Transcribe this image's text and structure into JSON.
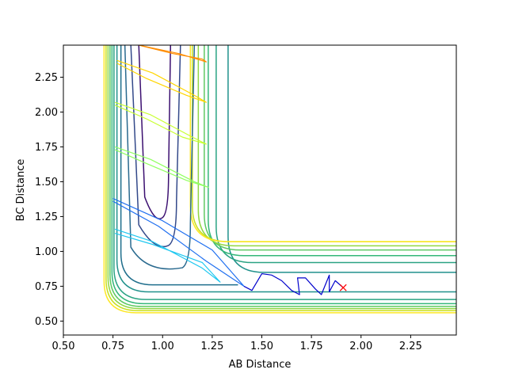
{
  "chart_data": {
    "type": "contour",
    "xlabel": "AB Distance",
    "ylabel": "BC Distance",
    "xlim": [
      0.5,
      2.48
    ],
    "ylim": [
      0.4,
      2.48
    ],
    "x_ticks": [
      "0.50",
      "0.75",
      "1.00",
      "1.25",
      "1.50",
      "1.75",
      "2.00",
      "2.25"
    ],
    "y_ticks": [
      "0.50",
      "0.75",
      "1.00",
      "1.25",
      "1.50",
      "1.75",
      "2.00",
      "2.25"
    ],
    "grid": false,
    "colormap": [
      "#440154",
      "#3b528b",
      "#21918c",
      "#35b779",
      "#5ec962",
      "#90d743",
      "#c8e020",
      "#fde725"
    ],
    "surface_contours": [
      {
        "color": "#3b0f70",
        "x": [
          0.88,
          0.91,
          0.96,
          1.0,
          1.03,
          1.04
        ],
        "y_top": 2.48,
        "y_bottom": 1.22,
        "closed_bottom": true
      },
      {
        "color": "#33498a",
        "x": [
          0.84,
          0.88,
          0.96,
          1.03,
          1.07,
          1.09
        ],
        "y_top": 2.48,
        "y_bottom": 1.02,
        "closed_bottom": true
      },
      {
        "color": "#2a6a8f",
        "x": [
          0.81,
          0.84,
          0.92,
          1.1,
          1.14,
          1.16
        ],
        "y_top": 2.48,
        "y_bottom": 0.86,
        "closed_bottom": true
      }
    ],
    "valley_contours": [
      {
        "color": "#1f6e8c",
        "xv": 0.79,
        "yh": 0.76,
        "xend": 1.38
      },
      {
        "color": "#21918c",
        "xv": 0.77,
        "yh": 0.71,
        "xend": 2.48,
        "right": 0.85,
        "corner": 1.33
      },
      {
        "color": "#2aa383",
        "xv": 0.755,
        "yh": 0.655,
        "xend": 2.48,
        "right": 0.92,
        "corner": 1.27
      },
      {
        "color": "#35b779",
        "xv": 0.745,
        "yh": 0.625,
        "xend": 2.48,
        "right": 0.97,
        "corner": 1.23
      },
      {
        "color": "#5ec962",
        "xv": 0.735,
        "yh": 0.605,
        "xend": 2.48,
        "right": 1.01,
        "corner": 1.21
      },
      {
        "color": "#90d743",
        "xv": 0.725,
        "yh": 0.59,
        "xend": 2.48,
        "right": 1.04,
        "corner": 1.18
      },
      {
        "color": "#c8e020",
        "xv": 0.715,
        "yh": 0.575,
        "xend": 2.48,
        "right": 1.07,
        "corner": 1.15
      },
      {
        "color": "#fde725",
        "xv": 0.705,
        "yh": 0.56,
        "xend": 2.48,
        "right": 1.07,
        "corner": 1.14
      }
    ],
    "trajectories": [
      {
        "color": "#ff8c00",
        "x": [
          0.88,
          1.05,
          1.2,
          1.22,
          1.08,
          0.88
        ],
        "y": [
          2.48,
          2.42,
          2.38,
          2.36,
          2.42,
          2.48
        ]
      },
      {
        "color": "#ffd500",
        "x": [
          0.77,
          0.95,
          1.16,
          1.22,
          1.12,
          0.92,
          0.77
        ],
        "y": [
          2.37,
          2.28,
          2.12,
          2.07,
          2.12,
          2.24,
          2.35
        ]
      },
      {
        "color": "#c8ff30",
        "x": [
          0.76,
          0.94,
          1.15,
          1.22,
          1.1,
          0.92,
          0.76
        ],
        "y": [
          2.07,
          1.98,
          1.82,
          1.77,
          1.82,
          1.95,
          2.05
        ]
      },
      {
        "color": "#90ff60",
        "x": [
          0.76,
          0.94,
          1.16,
          1.23,
          1.12,
          0.92,
          0.76
        ],
        "y": [
          1.75,
          1.66,
          1.5,
          1.46,
          1.51,
          1.63,
          1.73
        ]
      },
      {
        "color": "#20c8f0",
        "x": [
          0.76,
          0.95,
          1.2,
          1.29,
          1.2,
          0.95,
          0.76
        ],
        "y": [
          1.16,
          1.07,
          0.88,
          0.78,
          0.92,
          1.05,
          1.13
        ]
      },
      {
        "color": "#1f6ff0",
        "x": [
          0.75,
          1.0,
          1.25,
          1.41,
          1.22,
          0.98,
          0.75
        ],
        "y": [
          1.38,
          1.22,
          1.01,
          0.75,
          0.93,
          1.18,
          1.36
        ]
      },
      {
        "color": "#0000cc",
        "x": [
          1.41,
          1.45,
          1.5,
          1.55,
          1.6,
          1.65,
          1.69,
          1.68,
          1.72,
          1.77,
          1.8,
          1.84,
          1.84,
          1.87,
          1.91
        ],
        "y": [
          0.75,
          0.72,
          0.84,
          0.83,
          0.79,
          0.72,
          0.69,
          0.81,
          0.81,
          0.73,
          0.69,
          0.83,
          0.71,
          0.79,
          0.74
        ]
      }
    ],
    "marker": {
      "x": 1.91,
      "y": 0.74,
      "symbol": "x",
      "color": "#ff0000"
    }
  }
}
